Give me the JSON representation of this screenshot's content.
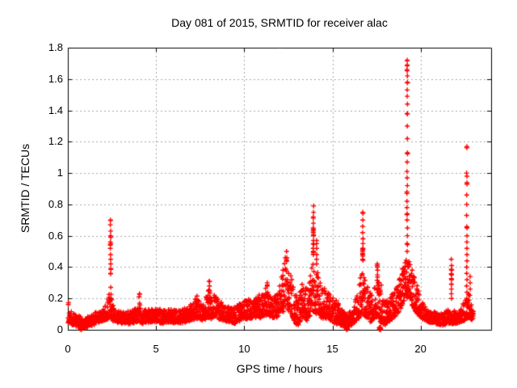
{
  "chart": {
    "title": "Day 081 of 2015, SRMTID for receiver alac",
    "xlabel": "GPS time / hours",
    "ylabel": "SRMTID / TECUs"
  },
  "colors": {
    "marker": "#ff0000",
    "frame": "#000000",
    "grid": "#a8a8a8",
    "background": "#ffffff"
  },
  "chart_data": {
    "type": "scatter",
    "title": "Day 081 of 2015, SRMTID for receiver alac",
    "xlabel": "GPS time / hours",
    "ylabel": "SRMTID / TECUs",
    "xlim": [
      0,
      24
    ],
    "ylim": [
      0,
      1.8
    ],
    "xtick_values": [
      0,
      5,
      10,
      15,
      20
    ],
    "xtick_labels": [
      "0",
      "5",
      "10",
      "15",
      "20"
    ],
    "ytick_values": [
      0,
      0.2,
      0.4,
      0.6,
      0.8,
      1.0,
      1.2,
      1.4,
      1.6,
      1.8
    ],
    "ytick_labels": [
      "0",
      "0.2",
      "0.4",
      "0.6",
      "0.8",
      "1",
      "1.2",
      "1.4",
      "1.6",
      "1.8"
    ],
    "grid": "dashed",
    "legend": false,
    "marker": {
      "shape": "plus",
      "color": "#ff0000",
      "size": 7
    },
    "seed": 81,
    "sample_step_hours": 0.0085,
    "data_end_hour": 23.0,
    "baseline_envelope": [
      [
        0.0,
        0.05,
        0.21
      ],
      [
        0.1,
        0.04,
        0.14
      ],
      [
        0.3,
        0.03,
        0.1
      ],
      [
        0.6,
        0.02,
        0.09
      ],
      [
        0.9,
        0.01,
        0.07
      ],
      [
        1.1,
        0.02,
        0.08
      ],
      [
        1.4,
        0.03,
        0.1
      ],
      [
        1.8,
        0.05,
        0.12
      ],
      [
        2.1,
        0.06,
        0.15
      ],
      [
        2.3,
        0.07,
        0.22
      ],
      [
        2.42,
        0.08,
        0.32
      ],
      [
        2.55,
        0.06,
        0.16
      ],
      [
        2.8,
        0.05,
        0.12
      ],
      [
        3.2,
        0.04,
        0.11
      ],
      [
        3.6,
        0.04,
        0.12
      ],
      [
        3.9,
        0.05,
        0.15
      ],
      [
        4.05,
        0.05,
        0.18
      ],
      [
        4.2,
        0.04,
        0.13
      ],
      [
        4.6,
        0.05,
        0.13
      ],
      [
        5.0,
        0.05,
        0.14
      ],
      [
        5.4,
        0.04,
        0.12
      ],
      [
        5.8,
        0.05,
        0.13
      ],
      [
        6.2,
        0.04,
        0.12
      ],
      [
        6.6,
        0.05,
        0.14
      ],
      [
        7.0,
        0.06,
        0.17
      ],
      [
        7.3,
        0.07,
        0.22
      ],
      [
        7.6,
        0.06,
        0.16
      ],
      [
        8.0,
        0.07,
        0.26
      ],
      [
        8.3,
        0.08,
        0.22
      ],
      [
        8.6,
        0.07,
        0.2
      ],
      [
        9.0,
        0.05,
        0.16
      ],
      [
        9.4,
        0.04,
        0.14
      ],
      [
        9.8,
        0.06,
        0.17
      ],
      [
        10.2,
        0.07,
        0.2
      ],
      [
        10.6,
        0.07,
        0.2
      ],
      [
        11.0,
        0.08,
        0.24
      ],
      [
        11.3,
        0.1,
        0.3
      ],
      [
        11.6,
        0.07,
        0.2
      ],
      [
        11.9,
        0.08,
        0.24
      ],
      [
        12.1,
        0.1,
        0.32
      ],
      [
        12.35,
        0.14,
        0.48
      ],
      [
        12.6,
        0.12,
        0.38
      ],
      [
        12.85,
        0.05,
        0.25
      ],
      [
        13.05,
        0.03,
        0.2
      ],
      [
        13.3,
        0.08,
        0.3
      ],
      [
        13.6,
        0.06,
        0.26
      ],
      [
        13.9,
        0.12,
        0.45
      ],
      [
        14.1,
        0.1,
        0.4
      ],
      [
        14.4,
        0.07,
        0.26
      ],
      [
        14.7,
        0.08,
        0.28
      ],
      [
        15.0,
        0.05,
        0.22
      ],
      [
        15.3,
        0.04,
        0.18
      ],
      [
        15.6,
        0.02,
        0.12
      ],
      [
        15.8,
        0.01,
        0.1
      ],
      [
        16.1,
        0.03,
        0.13
      ],
      [
        16.4,
        0.06,
        0.22
      ],
      [
        16.7,
        0.1,
        0.42
      ],
      [
        16.9,
        0.08,
        0.3
      ],
      [
        17.2,
        0.05,
        0.22
      ],
      [
        17.5,
        0.08,
        0.32
      ],
      [
        17.7,
        0.05,
        0.38
      ],
      [
        17.9,
        0.03,
        0.18
      ],
      [
        18.2,
        0.05,
        0.2
      ],
      [
        18.5,
        0.08,
        0.26
      ],
      [
        18.8,
        0.12,
        0.34
      ],
      [
        19.1,
        0.18,
        0.44
      ],
      [
        19.3,
        0.22,
        0.48
      ],
      [
        19.5,
        0.16,
        0.4
      ],
      [
        19.8,
        0.1,
        0.28
      ],
      [
        20.1,
        0.07,
        0.18
      ],
      [
        20.4,
        0.05,
        0.13
      ],
      [
        20.8,
        0.04,
        0.11
      ],
      [
        21.2,
        0.03,
        0.1
      ],
      [
        21.6,
        0.04,
        0.13
      ],
      [
        21.9,
        0.04,
        0.12
      ],
      [
        22.2,
        0.05,
        0.13
      ],
      [
        22.5,
        0.06,
        0.18
      ],
      [
        22.7,
        0.08,
        0.24
      ],
      [
        22.9,
        0.06,
        0.16
      ],
      [
        23.0,
        0.07,
        0.14
      ]
    ],
    "spike_columns": [
      {
        "t": 2.42,
        "values": [
          0.36,
          0.39,
          0.42,
          0.45,
          0.48,
          0.52,
          0.54,
          0.55,
          0.56,
          0.6,
          0.63,
          0.67,
          0.7
        ]
      },
      {
        "t": 4.05,
        "values": [
          0.21,
          0.23
        ]
      },
      {
        "t": 8.02,
        "values": [
          0.28,
          0.31
        ]
      },
      {
        "t": 11.3,
        "values": [
          0.28,
          0.3
        ]
      },
      {
        "t": 12.4,
        "values": [
          0.44,
          0.46,
          0.5
        ]
      },
      {
        "t": 13.92,
        "values": [
          0.48,
          0.5,
          0.52,
          0.55,
          0.57,
          0.6,
          0.62,
          0.63,
          0.64,
          0.65,
          0.68,
          0.72,
          0.75,
          0.79
        ]
      },
      {
        "t": 14.1,
        "values": [
          0.42,
          0.45,
          0.48,
          0.52,
          0.55,
          0.57
        ]
      },
      {
        "t": 16.72,
        "values": [
          0.45,
          0.47,
          0.48,
          0.5,
          0.51,
          0.52,
          0.55,
          0.58,
          0.62,
          0.66,
          0.7,
          0.75
        ]
      },
      {
        "t": 17.55,
        "values": [
          0.35,
          0.38,
          0.4,
          0.42
        ]
      },
      {
        "t": 19.24,
        "values": [
          0.5,
          0.55,
          0.6,
          0.65,
          0.7,
          0.74,
          0.78,
          0.82,
          0.87,
          0.92,
          0.97,
          1.01,
          1.07,
          1.13,
          1.22,
          1.3,
          1.38,
          1.44,
          1.49,
          1.53,
          1.58,
          1.62,
          1.66,
          1.69,
          1.72
        ]
      },
      {
        "t": 21.75,
        "values": [
          0.2,
          0.23,
          0.26,
          0.29,
          0.32,
          0.35,
          0.38,
          0.41,
          0.45
        ]
      },
      {
        "t": 22.62,
        "values": [
          0.2,
          0.24,
          0.28,
          0.32,
          0.36,
          0.4,
          0.44,
          0.48,
          0.52,
          0.56,
          0.6,
          0.65,
          0.73,
          0.8,
          0.86,
          0.93,
          0.98,
          1.0,
          1.17
        ]
      },
      {
        "t": 22.8,
        "values": [
          0.22,
          0.26,
          0.3,
          0.34
        ]
      }
    ],
    "zero_clusters": [
      {
        "t": 0.73,
        "n": 12
      },
      {
        "t": 15.82,
        "n": 14
      },
      {
        "t": 17.7,
        "n": 12
      }
    ]
  }
}
